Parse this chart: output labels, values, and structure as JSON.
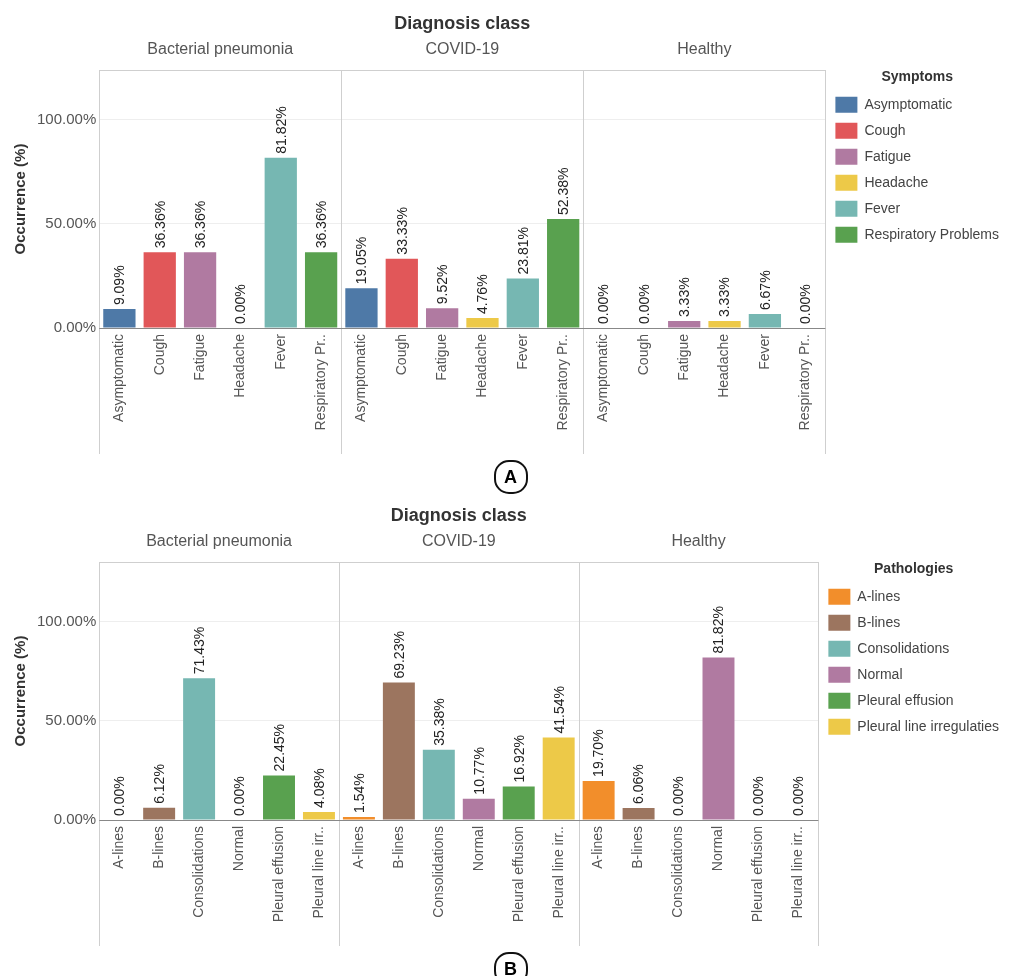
{
  "chart_data": [
    {
      "type": "bar",
      "title": "Diagnosis class",
      "subtitle": "A",
      "ylabel": "Occurrence (%)",
      "legend_title": "Symptoms",
      "legend": "right",
      "stacked": true,
      "grid": "y",
      "annotations": [
        "Bacterial pneumonia",
        "COVID-19",
        "Healthy"
      ],
      "categories": [
        "Asymptomatic",
        "Cough",
        "Fatigue",
        "Headache",
        "Fever",
        "Respiratory Pr..",
        "Asymptomatic",
        "Cough",
        "Fatigue",
        "Headache",
        "Fever",
        "Respiratory Pr..",
        "Asymptomatic",
        "Cough",
        "Fatigue",
        "Headache",
        "Fever",
        "Respiratory Pr.."
      ],
      "ylim": [
        0,
        124
      ],
      "yticks": [
        {
          "value": 0,
          "label": "0.00%"
        },
        {
          "value": 50,
          "label": "50.00%"
        },
        {
          "value": 100,
          "label": "100.00%"
        }
      ],
      "series": [
        {
          "name": "Asymptomatic",
          "color": "#4e79a7",
          "values": [
            9.09,
            null,
            null,
            null,
            null,
            null,
            19.05,
            null,
            null,
            null,
            null,
            null,
            0,
            null,
            null,
            null,
            null,
            null
          ],
          "value_labels": [
            "9.09%",
            null,
            null,
            null,
            null,
            null,
            "19.05%",
            null,
            null,
            null,
            null,
            null,
            "0.00%",
            null,
            null,
            null,
            null,
            null
          ]
        },
        {
          "name": "Cough",
          "color": "#e15759",
          "values": [
            null,
            36.36,
            null,
            null,
            null,
            null,
            null,
            33.33,
            null,
            null,
            null,
            null,
            null,
            0,
            null,
            null,
            null,
            null
          ],
          "value_labels": [
            null,
            "36.36%",
            null,
            null,
            null,
            null,
            null,
            "33.33%",
            null,
            null,
            null,
            null,
            null,
            "0.00%",
            null,
            null,
            null,
            null
          ]
        },
        {
          "name": "Fatigue",
          "color": "#b07aa1",
          "values": [
            null,
            null,
            36.36,
            null,
            null,
            null,
            null,
            null,
            9.52,
            null,
            null,
            null,
            null,
            null,
            3.33,
            null,
            null,
            null
          ],
          "value_labels": [
            null,
            null,
            "36.36%",
            null,
            null,
            null,
            null,
            null,
            "9.52%",
            null,
            null,
            null,
            null,
            null,
            "3.33%",
            null,
            null,
            null
          ]
        },
        {
          "name": "Headache",
          "color": "#edc948",
          "values": [
            null,
            null,
            null,
            0,
            null,
            null,
            null,
            null,
            null,
            4.76,
            null,
            null,
            null,
            null,
            null,
            3.33,
            null,
            null
          ],
          "value_labels": [
            null,
            null,
            null,
            "0.00%",
            null,
            null,
            null,
            null,
            null,
            "4.76%",
            null,
            null,
            null,
            null,
            null,
            "3.33%",
            null,
            null
          ]
        },
        {
          "name": "Fever",
          "color": "#76b7b2",
          "values": [
            null,
            null,
            null,
            null,
            81.82,
            null,
            null,
            null,
            null,
            null,
            23.81,
            null,
            null,
            null,
            null,
            null,
            6.67,
            null
          ],
          "value_labels": [
            null,
            null,
            null,
            null,
            "81.82%",
            null,
            null,
            null,
            null,
            null,
            "23.81%",
            null,
            null,
            null,
            null,
            null,
            "6.67%",
            null
          ]
        },
        {
          "name": "Respiratory Problems",
          "color": "#59a14f",
          "values": [
            null,
            null,
            null,
            null,
            null,
            36.36,
            null,
            null,
            null,
            null,
            null,
            52.38,
            null,
            null,
            null,
            null,
            null,
            0
          ],
          "value_labels": [
            null,
            null,
            null,
            null,
            null,
            "36.36%",
            null,
            null,
            null,
            null,
            null,
            "52.38%",
            null,
            null,
            null,
            null,
            null,
            "0.00%"
          ]
        }
      ]
    },
    {
      "type": "bar",
      "title": "Diagnosis class",
      "subtitle": "B",
      "ylabel": "Occurrence (%)",
      "legend_title": "Pathologies",
      "legend": "right",
      "stacked": true,
      "grid": "y",
      "annotations": [
        "Bacterial pneumonia",
        "COVID-19",
        "Healthy"
      ],
      "categories": [
        "A-lines",
        "B-lines",
        "Consolidations",
        "Normal",
        "Pleural effusion",
        "Pleural line irr..",
        "A-lines",
        "B-lines",
        "Consolidations",
        "Normal",
        "Pleural effusion",
        "Pleural line irr..",
        "A-lines",
        "B-lines",
        "Consolidations",
        "Normal",
        "Pleural effusion",
        "Pleural line irr.."
      ],
      "ylim": [
        0,
        130
      ],
      "yticks": [
        {
          "value": 0,
          "label": "0.00%"
        },
        {
          "value": 50,
          "label": "50.00%"
        },
        {
          "value": 100,
          "label": "100.00%"
        }
      ],
      "series": [
        {
          "name": "A-lines",
          "color": "#f28e2b",
          "values": [
            0,
            null,
            null,
            null,
            null,
            null,
            1.54,
            null,
            null,
            null,
            null,
            null,
            19.7,
            null,
            null,
            null,
            null,
            null
          ],
          "value_labels": [
            "0.00%",
            null,
            null,
            null,
            null,
            null,
            "1.54%",
            null,
            null,
            null,
            null,
            null,
            "19.70%",
            null,
            null,
            null,
            null,
            null
          ]
        },
        {
          "name": "B-lines",
          "color": "#9c755f",
          "values": [
            null,
            6.12,
            null,
            null,
            null,
            null,
            null,
            69.23,
            null,
            null,
            null,
            null,
            null,
            6.06,
            null,
            null,
            null,
            null
          ],
          "value_labels": [
            null,
            "6.12%",
            null,
            null,
            null,
            null,
            null,
            "69.23%",
            null,
            null,
            null,
            null,
            null,
            "6.06%",
            null,
            null,
            null,
            null
          ]
        },
        {
          "name": "Consolidations",
          "color": "#76b7b2",
          "values": [
            null,
            null,
            71.43,
            null,
            null,
            null,
            null,
            null,
            35.38,
            null,
            null,
            null,
            null,
            null,
            0,
            null,
            null,
            null
          ],
          "value_labels": [
            null,
            null,
            "71.43%",
            null,
            null,
            null,
            null,
            null,
            "35.38%",
            null,
            null,
            null,
            null,
            null,
            "0.00%",
            null,
            null,
            null
          ]
        },
        {
          "name": "Normal",
          "color": "#b07aa1",
          "values": [
            null,
            null,
            null,
            0,
            null,
            null,
            null,
            null,
            null,
            10.77,
            null,
            null,
            null,
            null,
            null,
            81.82,
            null,
            null
          ],
          "value_labels": [
            null,
            null,
            null,
            "0.00%",
            null,
            null,
            null,
            null,
            null,
            "10.77%",
            null,
            null,
            null,
            null,
            null,
            "81.82%",
            null,
            null
          ]
        },
        {
          "name": "Pleural effusion",
          "color": "#59a14f",
          "values": [
            null,
            null,
            null,
            null,
            22.45,
            null,
            null,
            null,
            null,
            null,
            16.92,
            null,
            null,
            null,
            null,
            null,
            0,
            null
          ],
          "value_labels": [
            null,
            null,
            null,
            null,
            "22.45%",
            null,
            null,
            null,
            null,
            null,
            "16.92%",
            null,
            null,
            null,
            null,
            null,
            "0.00%",
            null
          ]
        },
        {
          "name": "Pleural line irregulaties",
          "color": "#edc948",
          "values": [
            null,
            null,
            null,
            null,
            null,
            4.08,
            null,
            null,
            null,
            null,
            null,
            41.54,
            null,
            null,
            null,
            null,
            null,
            0
          ],
          "value_labels": [
            null,
            null,
            null,
            null,
            null,
            "4.08%",
            null,
            null,
            null,
            null,
            null,
            "41.54%",
            null,
            null,
            null,
            null,
            null,
            "0.00%"
          ]
        }
      ]
    }
  ]
}
